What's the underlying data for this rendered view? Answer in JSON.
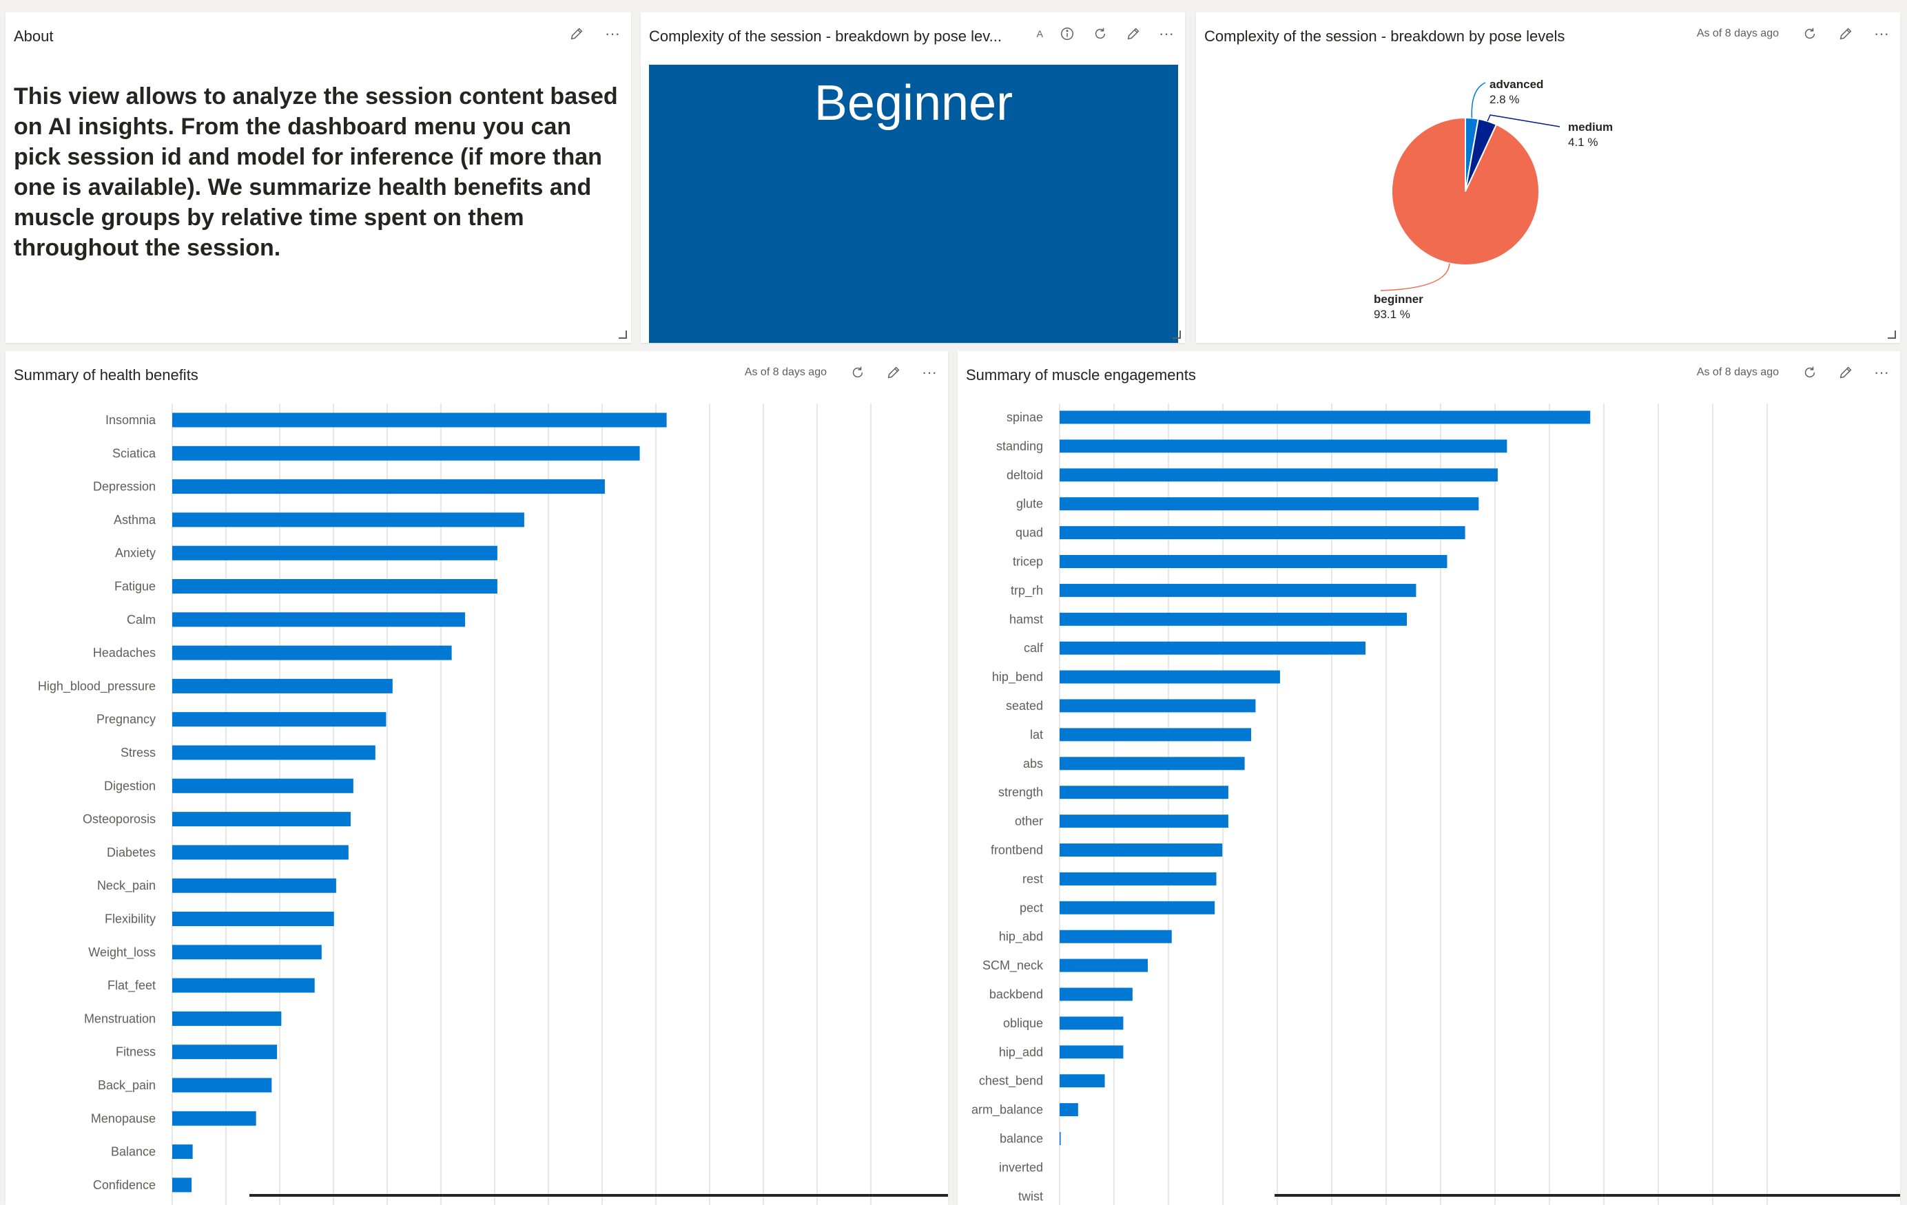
{
  "about_tile": {
    "title": "About",
    "text": "This view allows to analyze the session content based on AI insights. From the dashboard menu you can pick session id and model for inference (if more than one is available). We summarize health benefits and muscle groups by relative time spent on them throughout the session."
  },
  "card_tile": {
    "title": "Complexity of the session - breakdown by pose lev...",
    "badge": "A",
    "value": "Beginner"
  },
  "pie_tile": {
    "title": "Complexity of the session - breakdown by pose levels",
    "timestamp": "As of 8 days ago"
  },
  "health_tile": {
    "title": "Summary of health benefits",
    "timestamp": "As of 8 days ago"
  },
  "muscle_tile": {
    "title": "Summary of muscle engagements",
    "timestamp": "As of 8 days ago"
  },
  "icons": {
    "edit": "pencil-icon",
    "more": "ellipsis-icon",
    "refresh": "refresh-icon",
    "info": "info-icon",
    "resize": "resize-handle-icon"
  },
  "colors": {
    "bar": "#0078d4",
    "card_bg": "#005a9e",
    "pie_beginner": "#f06b50",
    "pie_medium": "#001f8f",
    "pie_advanced": "#0078d4"
  },
  "chart_data": [
    {
      "type": "pie",
      "slices": [
        {
          "label": "beginner",
          "value": 93.1,
          "display": "93.1 %",
          "color": "#f06b50"
        },
        {
          "label": "medium",
          "value": 4.1,
          "display": "4.1 %",
          "color": "#001f8f"
        },
        {
          "label": "advanced",
          "value": 2.8,
          "display": "2.8 %",
          "color": "#0078d4"
        }
      ]
    },
    {
      "type": "bar",
      "orientation": "horizontal",
      "categories": [
        "Insomnia",
        "Sciatica",
        "Depression",
        "Asthma",
        "Anxiety",
        "Fatigue",
        "Calm",
        "Headaches",
        "High_blood_pressure",
        "Pregnancy",
        "Stress",
        "Digestion",
        "Osteoporosis",
        "Diabetes",
        "Neck_pain",
        "Flexibility",
        "Weight_loss",
        "Flat_feet",
        "Menstruation",
        "Fitness",
        "Back_pain",
        "Menopause",
        "Balance",
        "Confidence"
      ],
      "values": [
        9.2,
        8.7,
        8.05,
        6.55,
        6.05,
        6.05,
        5.45,
        5.2,
        4.1,
        3.98,
        3.78,
        3.37,
        3.32,
        3.28,
        3.05,
        3.01,
        2.78,
        2.65,
        2.03,
        1.95,
        1.85,
        1.56,
        0.38,
        0.36
      ],
      "xlim": [
        0,
        14
      ],
      "grid": true,
      "legend": "none"
    },
    {
      "type": "bar",
      "orientation": "horizontal",
      "categories": [
        "spinae",
        "standing",
        "deltoid",
        "glute",
        "quad",
        "tricep",
        "trp_rh",
        "hamst",
        "calf",
        "hip_bend",
        "seated",
        "lat",
        "abs",
        "strength",
        "other",
        "frontbend",
        "rest",
        "pect",
        "hip_abd",
        "SCM_neck",
        "backbend",
        "oblique",
        "hip_add",
        "chest_bend",
        "arm_balance",
        "balance",
        "inverted",
        "twist"
      ],
      "values": [
        9.75,
        8.22,
        8.05,
        7.7,
        7.45,
        7.12,
        6.55,
        6.38,
        5.62,
        4.05,
        3.6,
        3.52,
        3.4,
        3.1,
        3.1,
        2.99,
        2.88,
        2.85,
        2.06,
        1.62,
        1.34,
        1.17,
        1.17,
        0.83,
        0.34,
        0.02,
        0.0,
        0.0
      ],
      "xlim": [
        0,
        14
      ],
      "grid": true,
      "legend": "none"
    }
  ]
}
